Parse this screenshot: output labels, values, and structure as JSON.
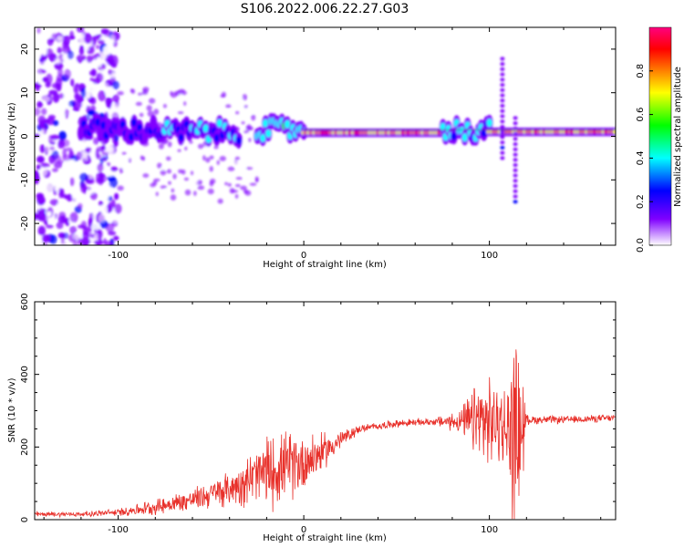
{
  "figure": {
    "title": "S106.2022.006.22.27.G03"
  },
  "chart_data": [
    {
      "type": "heatmap",
      "xlabel": "Height of straight line (km)",
      "ylabel": "Frequency (Hz)",
      "xlim": [
        -145,
        168
      ],
      "ylim": [
        -25,
        25
      ],
      "x_ticks": [
        -100,
        0,
        100
      ],
      "x_tick_labels": [
        "-100",
        "0",
        "100"
      ],
      "y_ticks": [
        -20,
        -10,
        0,
        10,
        20
      ],
      "y_tick_labels": [
        "-20",
        "-10",
        "0",
        "10",
        "20"
      ],
      "colorbar": {
        "label": "Normalized spectral amplitude",
        "range": [
          0,
          1
        ],
        "ticks": [
          0.0,
          0.2,
          0.4,
          0.6,
          0.8
        ],
        "tick_labels": [
          "0.0",
          "0.2",
          "0.4",
          "0.6",
          "0.8"
        ],
        "colormap": [
          "#ffffff",
          "#8000ff",
          "#0000ff",
          "#00ffff",
          "#00ff00",
          "#ffff00",
          "#ff8000",
          "#ff0000",
          "#ff0080"
        ]
      },
      "carrier": [
        {
          "x_range": [
            -120,
            -75
          ],
          "freq": 1.5,
          "amplitude": 0.25
        },
        {
          "x_range": [
            -75,
            -35
          ],
          "freq": 1.0,
          "amplitude": 0.35
        },
        {
          "x_range": [
            -25,
            0
          ],
          "freq": 1.5,
          "amplitude": 0.45
        },
        {
          "x_range": [
            0,
            75
          ],
          "freq": 0.8,
          "amplitude": 0.85
        },
        {
          "x_range": [
            75,
            100
          ],
          "freq": 1.5,
          "amplitude": 0.4
        },
        {
          "x_range": [
            100,
            115
          ],
          "freq": 1.0,
          "amplitude": 0.8
        },
        {
          "x_range": [
            115,
            168
          ],
          "freq": 1.0,
          "amplitude": 0.85
        }
      ],
      "spikes": [
        {
          "x": 107,
          "freq_range": [
            -5,
            18
          ]
        },
        {
          "x": 114,
          "freq_range": [
            -15,
            5
          ]
        }
      ]
    },
    {
      "type": "line",
      "xlabel": "Height of straight line (km)",
      "ylabel": "SNR (10 * v/v)",
      "xlim": [
        -145,
        168
      ],
      "ylim": [
        0,
        600
      ],
      "x_ticks": [
        -100,
        0,
        100
      ],
      "x_tick_labels": [
        "-100",
        "0",
        "100"
      ],
      "y_ticks": [
        0,
        200,
        400,
        600
      ],
      "y_tick_labels": [
        "0",
        "200",
        "400",
        "600"
      ],
      "color": "#e8302a",
      "envelope": {
        "x": [
          -145,
          -120,
          -100,
          -80,
          -60,
          -40,
          -30,
          -20,
          -10,
          0,
          10,
          20,
          30,
          50,
          70,
          85,
          95,
          105,
          110,
          113,
          116,
          118,
          120,
          140,
          168
        ],
        "mean": [
          15,
          15,
          20,
          35,
          55,
          85,
          110,
          130,
          145,
          160,
          185,
          220,
          250,
          265,
          270,
          270,
          270,
          265,
          240,
          250,
          240,
          260,
          275,
          275,
          280
        ],
        "amplitude": [
          8,
          8,
          12,
          25,
          35,
          55,
          80,
          120,
          110,
          100,
          60,
          30,
          12,
          12,
          12,
          40,
          150,
          120,
          160,
          320,
          260,
          180,
          15,
          12,
          12
        ]
      }
    }
  ]
}
